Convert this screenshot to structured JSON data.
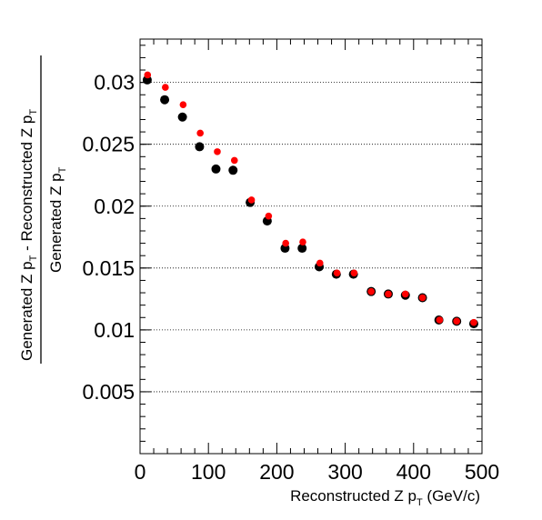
{
  "chart_data": {
    "type": "scatter",
    "title": "",
    "xlabel": {
      "main": "Reconstructed Z p",
      "sub": "T",
      "unit": " (GeV/c)"
    },
    "ylabel": {
      "numerator": {
        "part1": "Generated Z p",
        "sub1": "T",
        "part2": " - Reconstructed Z p",
        "sub2": "T"
      },
      "denominator": {
        "part1": "Generated Z p",
        "sub1": "T"
      }
    },
    "xlim": [
      0,
      500
    ],
    "ylim": [
      0,
      0.0335
    ],
    "xticks": [
      "0",
      "100",
      "200",
      "300",
      "400",
      "500"
    ],
    "yticks": [
      "0.005",
      "0.01",
      "0.015",
      "0.02",
      "0.025",
      "0.03"
    ],
    "grid": "horizontal-dotted",
    "series": [
      {
        "color": "#000000",
        "x": [
          10.5,
          36,
          62,
          87,
          111,
          136,
          161,
          186,
          212,
          237,
          262,
          287,
          312,
          338,
          363,
          388,
          413,
          437,
          463,
          488
        ],
        "y": [
          0.0302,
          0.0286,
          0.0272,
          0.0248,
          0.023,
          0.0229,
          0.0203,
          0.0188,
          0.0166,
          0.0166,
          0.0151,
          0.0145,
          0.0145,
          0.0131,
          0.0129,
          0.0128,
          0.0126,
          0.0108,
          0.0107,
          0.0105
        ]
      },
      {
        "color": "#ff0000",
        "x": [
          11,
          37,
          63,
          88,
          113,
          138,
          163,
          188,
          213,
          238,
          263,
          288,
          313,
          338,
          363,
          388,
          413,
          438,
          463,
          488
        ],
        "y": [
          0.0306,
          0.0296,
          0.0282,
          0.0259,
          0.0244,
          0.0237,
          0.0205,
          0.0192,
          0.017,
          0.0171,
          0.0154,
          0.0146,
          0.0146,
          0.0131,
          0.0129,
          0.0129,
          0.0126,
          0.0108,
          0.0107,
          0.0106
        ]
      }
    ]
  }
}
